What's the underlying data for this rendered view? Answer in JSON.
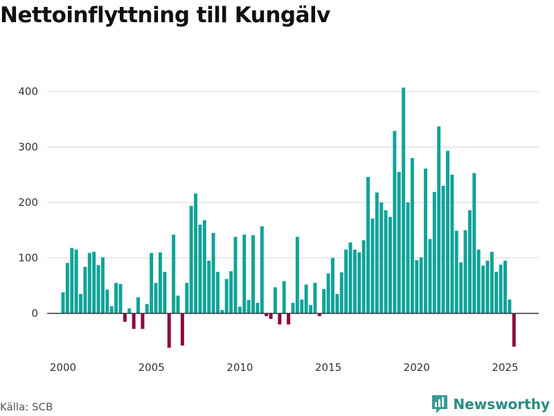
{
  "chart_data": {
    "type": "bar",
    "title": "Nettoinflyttning till Kungälv",
    "xlabel": "",
    "ylabel": "",
    "ylim": [
      -70,
      420
    ],
    "yticks": [
      0,
      100,
      200,
      300,
      400
    ],
    "xticks": [
      2000,
      2005,
      2010,
      2015,
      2020,
      2025
    ],
    "xlim": [
      1999.1,
      2026.9
    ],
    "grid": true,
    "legend": "none",
    "colors": {
      "positive": "#11a398",
      "negative": "#8c0a3e",
      "grid": "#dddddd",
      "zero_line": "#333333"
    },
    "series": [
      {
        "name": "Nettoinflyttning",
        "period": "quarterly",
        "start": 2000,
        "values": [
          38,
          91,
          118,
          115,
          35,
          84,
          109,
          111,
          87,
          101,
          43,
          13,
          55,
          53,
          -15,
          9,
          -28,
          29,
          -28,
          17,
          109,
          55,
          110,
          75,
          -62,
          142,
          32,
          -58,
          55,
          194,
          216,
          160,
          168,
          95,
          145,
          75,
          6,
          62,
          76,
          138,
          12,
          142,
          24,
          141,
          19,
          157,
          -5,
          -10,
          47,
          -20,
          58,
          -20,
          19,
          138,
          25,
          52,
          15,
          55,
          -5,
          44,
          72,
          100,
          35,
          74,
          115,
          128,
          115,
          110,
          132,
          246,
          171,
          218,
          200,
          186,
          174,
          329,
          255,
          407,
          200,
          280,
          96,
          101,
          261,
          134,
          219,
          337,
          230,
          293,
          250,
          149,
          92,
          150,
          186,
          253,
          115,
          86,
          95,
          111,
          75,
          88,
          95,
          25,
          -60
        ]
      }
    ]
  },
  "footer": {
    "source": "Källa: SCB",
    "brand": "Newsworthy"
  }
}
